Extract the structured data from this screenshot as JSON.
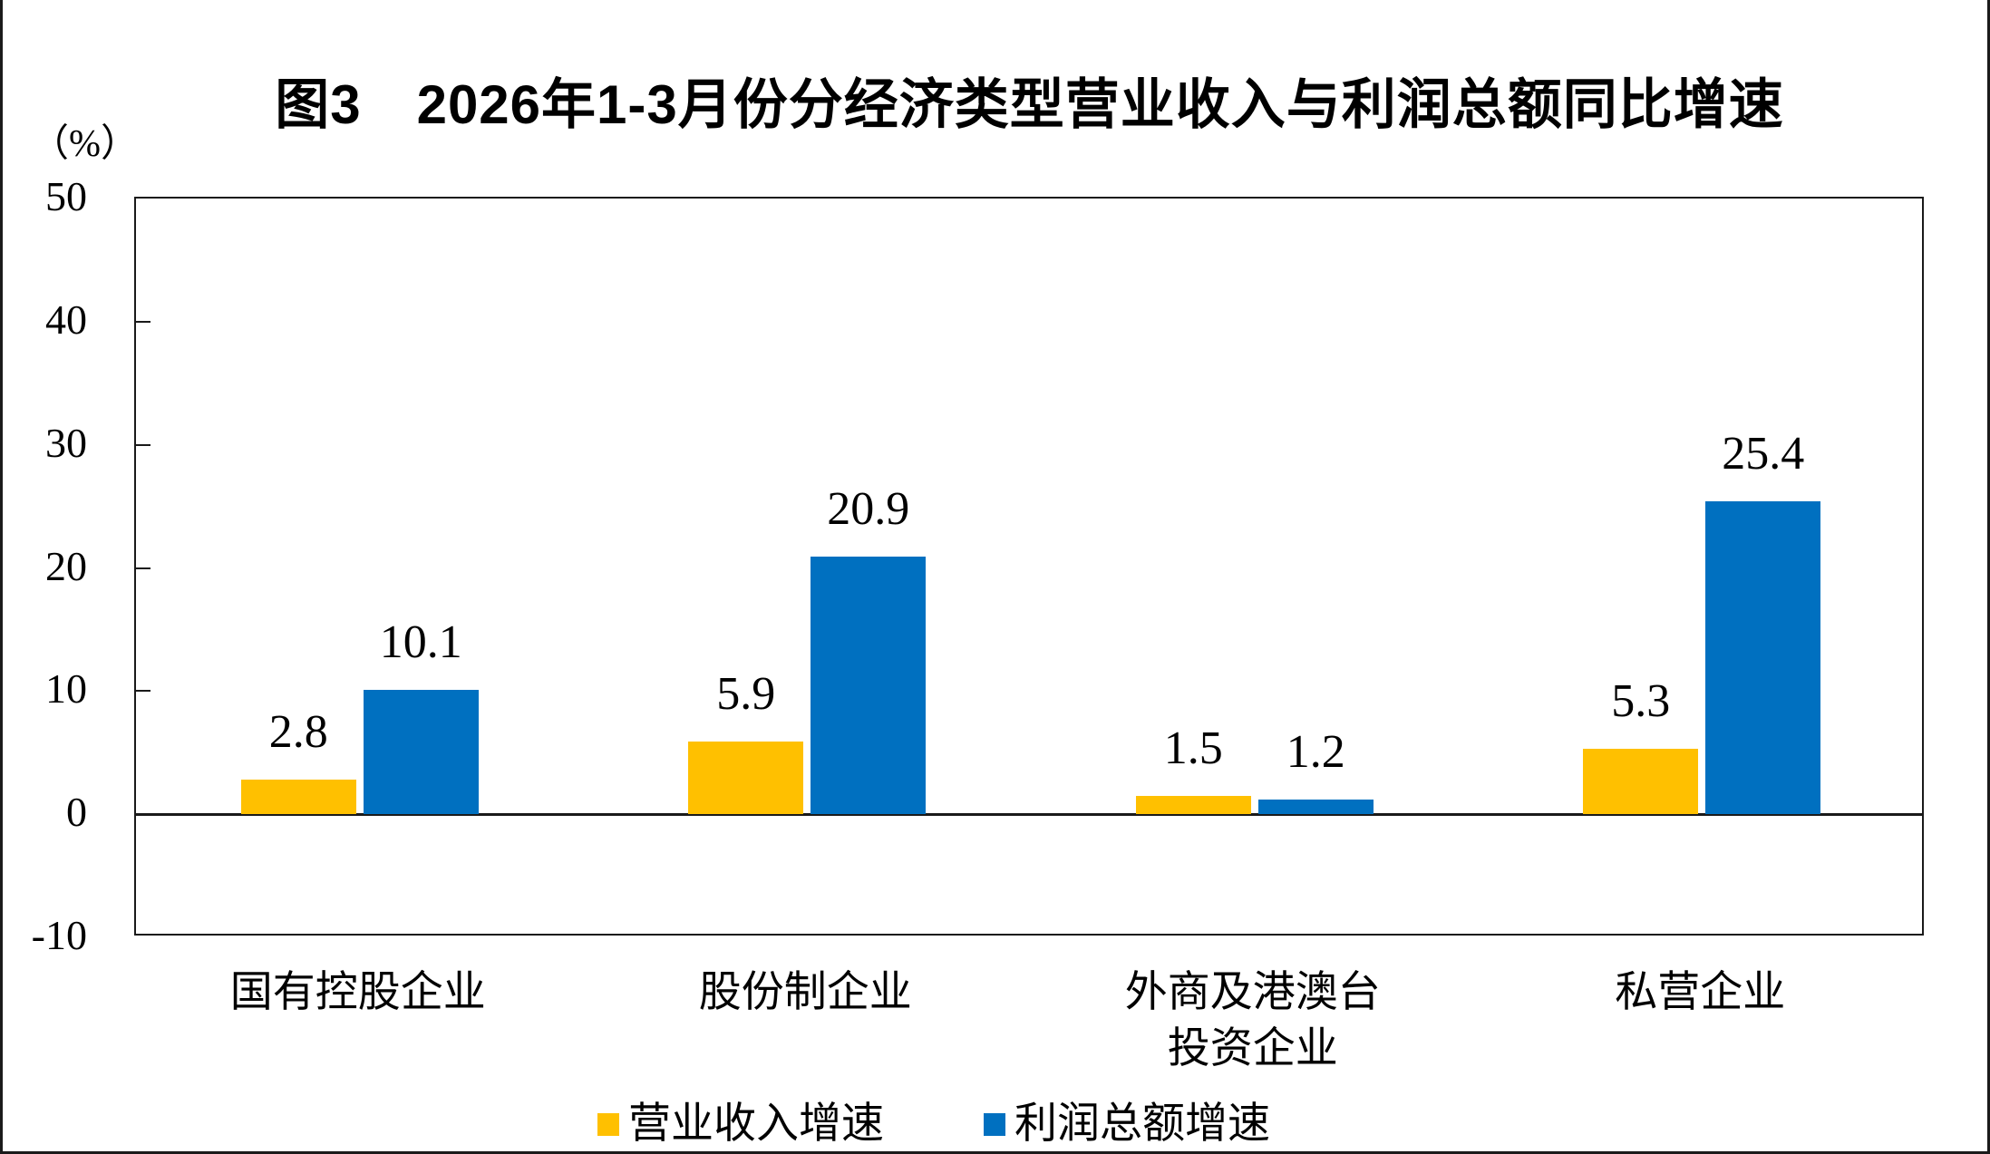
{
  "chart_data": {
    "type": "bar",
    "title": "图3　2026年1-3月份分经济类型营业收入与利润总额同比增速",
    "unit_label": "（%）",
    "categories": [
      "国有控股企业",
      "股份制企业",
      "外商及港澳台\n投资企业",
      "私营企业"
    ],
    "series": [
      {
        "name": "营业收入增速",
        "key": "operating-revenue-growth",
        "color": "#FFC000",
        "values": [
          2.8,
          5.9,
          1.5,
          5.3
        ]
      },
      {
        "name": "利润总额增速",
        "key": "total-profit-growth",
        "color": "#0070C0",
        "values": [
          10.1,
          20.9,
          1.2,
          25.4
        ]
      }
    ],
    "ylim": [
      -10,
      50
    ],
    "yticks": [
      50,
      40,
      30,
      20,
      10,
      0,
      -10
    ],
    "grid": false,
    "zero_line": true,
    "value_labels": true,
    "legend_position": "bottom",
    "axis_color": "#1a1a1a"
  }
}
